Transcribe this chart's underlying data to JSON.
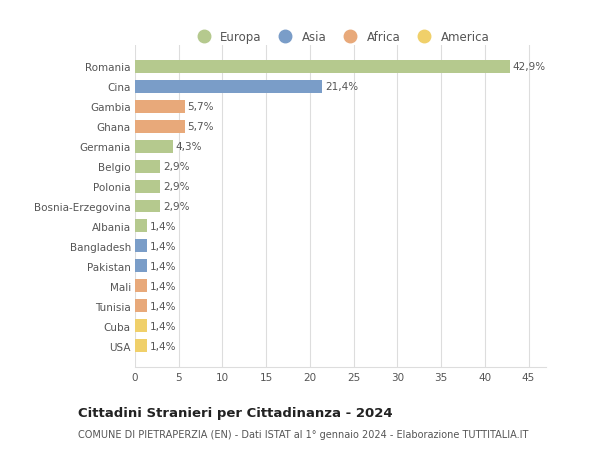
{
  "countries": [
    "Romania",
    "Cina",
    "Gambia",
    "Ghana",
    "Germania",
    "Belgio",
    "Polonia",
    "Bosnia-Erzegovina",
    "Albania",
    "Bangladesh",
    "Pakistan",
    "Mali",
    "Tunisia",
    "Cuba",
    "USA"
  ],
  "values": [
    42.9,
    21.4,
    5.7,
    5.7,
    4.3,
    2.9,
    2.9,
    2.9,
    1.4,
    1.4,
    1.4,
    1.4,
    1.4,
    1.4,
    1.4
  ],
  "labels": [
    "42,9%",
    "21,4%",
    "5,7%",
    "5,7%",
    "4,3%",
    "2,9%",
    "2,9%",
    "2,9%",
    "1,4%",
    "1,4%",
    "1,4%",
    "1,4%",
    "1,4%",
    "1,4%",
    "1,4%"
  ],
  "continents": [
    "Europa",
    "Asia",
    "Africa",
    "Africa",
    "Europa",
    "Europa",
    "Europa",
    "Europa",
    "Europa",
    "Asia",
    "Asia",
    "Africa",
    "Africa",
    "America",
    "America"
  ],
  "continent_colors": {
    "Europa": "#b5c98e",
    "Asia": "#7a9dc8",
    "Africa": "#e8a97a",
    "America": "#f0d06a"
  },
  "legend_order": [
    "Europa",
    "Asia",
    "Africa",
    "America"
  ],
  "title": "Cittadini Stranieri per Cittadinanza - 2024",
  "subtitle": "COMUNE DI PIETRAPERZIA (EN) - Dati ISTAT al 1° gennaio 2024 - Elaborazione TUTTITALIA.IT",
  "xlim": [
    0,
    47
  ],
  "xticks": [
    0,
    5,
    10,
    15,
    20,
    25,
    30,
    35,
    40,
    45
  ],
  "bar_height": 0.65,
  "background_color": "#ffffff",
  "grid_color": "#dddddd",
  "label_fontsize": 7.5,
  "title_fontsize": 9.5,
  "subtitle_fontsize": 7.0,
  "tick_fontsize": 7.5,
  "legend_fontsize": 8.5
}
